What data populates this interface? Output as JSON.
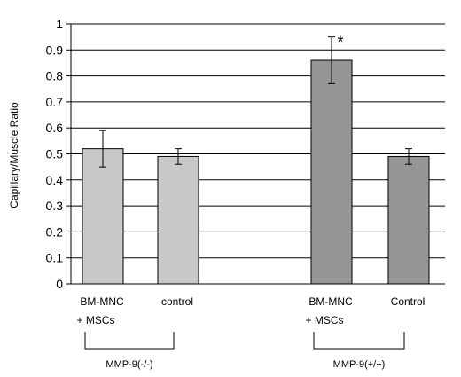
{
  "chart_data": {
    "type": "bar",
    "ylabel": "Capillary/Muscle Ratio",
    "ylim": [
      0,
      1
    ],
    "ytick_step": 0.1,
    "yticks": [
      "0",
      "0.1",
      "0.2",
      "0.3",
      "0.4",
      "0.5",
      "0.6",
      "0.7",
      "0.8",
      "0.9",
      "1"
    ],
    "grid": true,
    "categories": [
      {
        "line1": "BM-MNC",
        "line2": "+ MSCs"
      },
      {
        "line1": "control",
        "line2": ""
      },
      {
        "line1": "BM-MNC",
        "line2": "+ MSCs"
      },
      {
        "line1": "Control",
        "line2": ""
      }
    ],
    "values": [
      0.52,
      0.49,
      0.86,
      0.49
    ],
    "errors": [
      0.07,
      0.03,
      0.09,
      0.03
    ],
    "annotations": [
      "",
      "",
      "*",
      ""
    ],
    "groups": [
      {
        "label": "MMP-9(-/-)",
        "members": [
          0,
          1
        ]
      },
      {
        "label": "MMP-9(+/+)",
        "members": [
          2,
          3
        ]
      }
    ],
    "colors": {
      "group1_bar": "#c8c8c8",
      "group2_bar": "#969696",
      "grid": "#000000"
    }
  }
}
